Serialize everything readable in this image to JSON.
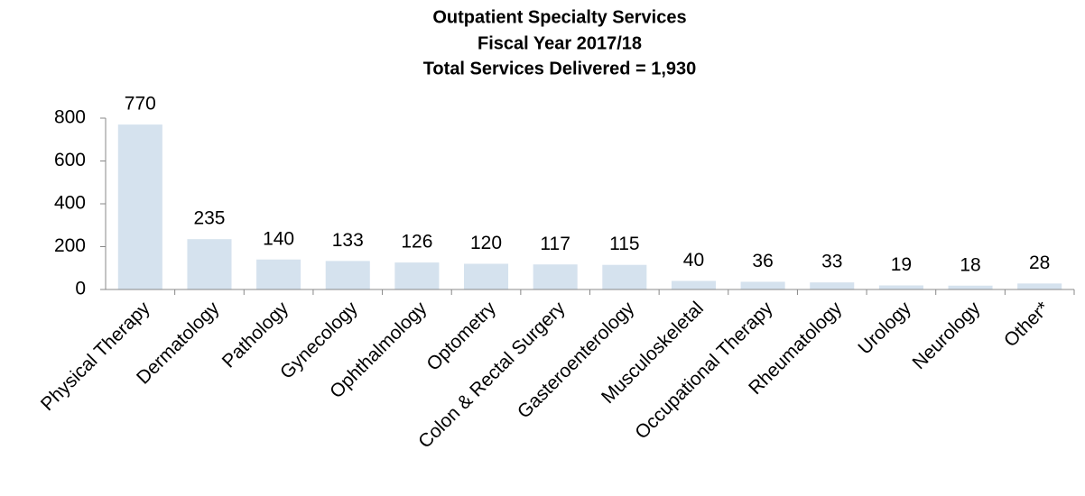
{
  "chart_data": {
    "type": "bar",
    "title": "Outpatient Specialty Services",
    "subtitle": [
      "Fiscal Year 2017/18",
      "Total Services Delivered = 1,930"
    ],
    "categories": [
      "Physical Therapy",
      "Dermatology",
      "Pathology",
      "Gynecology",
      "Ophthalmology",
      "Optometry",
      "Colon & Rectal Surgery",
      "Gasteroenterology",
      "Musculoskeletal",
      "Occupational Therapy",
      "Rheumatology",
      "Urology",
      "Neurology",
      "Other*"
    ],
    "values": [
      770,
      235,
      140,
      133,
      126,
      120,
      117,
      115,
      40,
      36,
      33,
      19,
      18,
      28
    ],
    "color": "#d5e2ee",
    "ylim": [
      0,
      800
    ],
    "yticks": [
      0,
      200,
      400,
      600,
      800
    ],
    "grid": false
  }
}
